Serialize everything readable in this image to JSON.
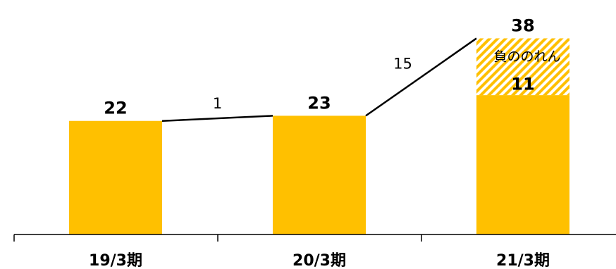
{
  "chart_data": {
    "type": "bar",
    "categories": [
      "19/3期",
      "20/3期",
      "21/3期"
    ],
    "values": [
      22,
      23,
      38
    ],
    "colors": {
      "base": "#FFC000",
      "hatch": "#FFC000",
      "connector": "#000000",
      "axis": "#000000"
    },
    "stacked_segment": {
      "category": "21/3期",
      "name": "負ののれん",
      "value": 11,
      "base_value": 27,
      "style": "hatched"
    },
    "differences": [
      {
        "from": "19/3期",
        "to": "20/3期",
        "label": "1"
      },
      {
        "from": "20/3期",
        "to": "21/3期",
        "label": "15"
      }
    ],
    "ylim": [
      0,
      44
    ],
    "grid": false,
    "legend": "none"
  }
}
